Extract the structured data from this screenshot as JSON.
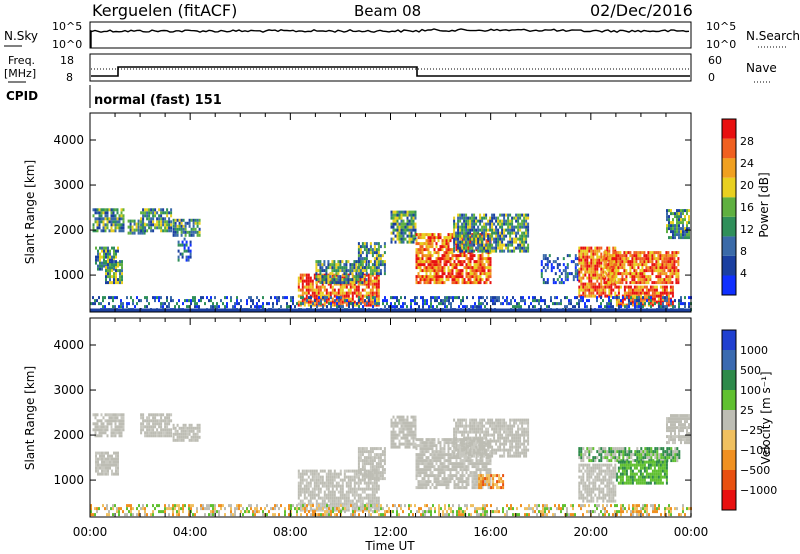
{
  "header": {
    "radar": "Kerguelen (fitACF)",
    "beam": "Beam 08",
    "date": "02/Dec/2016"
  },
  "noise_panel": {
    "left_label": "N.Sky",
    "right_label": "N.Search",
    "left_ticks": [
      "10^5",
      "10^0"
    ],
    "right_ticks": [
      "10^5",
      "10^0"
    ]
  },
  "freq_panel": {
    "left_label_line1": "Freq.",
    "left_label_line2": "[MHz]",
    "right_label": "Nave",
    "left_ticks": [
      "18",
      "8"
    ],
    "right_ticks": [
      "60",
      "0"
    ],
    "cpid_label": "CPID",
    "cpid_text": "normal (fast) 151"
  },
  "colors": {
    "power_scale": [
      "#1030ff",
      "#1a3fa0",
      "#3a6aa8",
      "#2f8f5a",
      "#5fb040",
      "#e8d020",
      "#f0a020",
      "#f06020",
      "#e81010"
    ],
    "velocity_scale": [
      "#2040d0",
      "#3a6ab0",
      "#2e8a4a",
      "#60c030",
      "#bdbdb4",
      "#f0c060",
      "#f09020",
      "#e85010",
      "#e81010"
    ],
    "ground_scatter": "#bdbdb4"
  },
  "chart_data": [
    {
      "type": "heatmap",
      "quantity": "Power",
      "xlabel": "",
      "ylabel": "Slant Range [km]",
      "ylim": [
        180,
        4600
      ],
      "yticks": [
        "1000",
        "2000",
        "3000",
        "4000"
      ],
      "xticks": [
        "00:00",
        "04:00",
        "08:00",
        "12:00",
        "16:00",
        "20:00",
        "00:00"
      ],
      "colorbar_label": "Power [dB]",
      "colorbar_ticks": [
        "4",
        "8",
        "12",
        "16",
        "20",
        "24",
        "28"
      ],
      "regions": [
        {
          "t0": 0.1,
          "t1": 1.3,
          "r0": 1950,
          "r1": 2450,
          "level": "mid"
        },
        {
          "t0": 0.2,
          "t1": 1.1,
          "r0": 1100,
          "r1": 1600,
          "level": "mid"
        },
        {
          "t0": 0.6,
          "t1": 1.3,
          "r0": 800,
          "r1": 1300,
          "level": "mid"
        },
        {
          "t0": 1.5,
          "t1": 2.2,
          "r0": 1900,
          "r1": 2200,
          "level": "mid"
        },
        {
          "t0": 2.0,
          "t1": 3.2,
          "r0": 1950,
          "r1": 2450,
          "level": "mid"
        },
        {
          "t0": 3.3,
          "t1": 4.4,
          "r0": 1850,
          "r1": 2200,
          "level": "mid"
        },
        {
          "t0": 3.5,
          "t1": 4.0,
          "r0": 1300,
          "r1": 1800,
          "level": "low"
        },
        {
          "t0": 8.3,
          "t1": 11.5,
          "r0": 300,
          "r1": 1000,
          "level": "high"
        },
        {
          "t0": 9.0,
          "t1": 11.0,
          "r0": 800,
          "r1": 1300,
          "level": "mid"
        },
        {
          "t0": 10.7,
          "t1": 11.8,
          "r0": 1000,
          "r1": 1700,
          "level": "mid"
        },
        {
          "t0": 12.0,
          "t1": 13.0,
          "r0": 1700,
          "r1": 2400,
          "level": "mid"
        },
        {
          "t0": 13.0,
          "t1": 16.0,
          "r0": 800,
          "r1": 1900,
          "level": "high"
        },
        {
          "t0": 14.5,
          "t1": 17.5,
          "r0": 1500,
          "r1": 2300,
          "level": "mid"
        },
        {
          "t0": 18.0,
          "t1": 19.5,
          "r0": 800,
          "r1": 1400,
          "level": "low"
        },
        {
          "t0": 19.5,
          "t1": 21.0,
          "r0": 500,
          "r1": 1600,
          "level": "high"
        },
        {
          "t0": 20.5,
          "t1": 23.5,
          "r0": 800,
          "r1": 1500,
          "level": "high"
        },
        {
          "t0": 21.0,
          "t1": 23.3,
          "r0": 300,
          "r1": 700,
          "level": "high"
        },
        {
          "t0": 23.0,
          "t1": 23.9,
          "r0": 1800,
          "r1": 2400,
          "level": "mid"
        },
        {
          "t0": 0.0,
          "t1": 24.0,
          "r0": 200,
          "r1": 500,
          "level": "low"
        }
      ]
    },
    {
      "type": "heatmap",
      "quantity": "Velocity",
      "xlabel": "Time UT",
      "ylabel": "Slant Range [km]",
      "ylim": [
        180,
        4600
      ],
      "yticks": [
        "1000",
        "2000",
        "3000",
        "4000"
      ],
      "xticks": [
        "00:00",
        "04:00",
        "08:00",
        "12:00",
        "16:00",
        "20:00",
        "00:00"
      ],
      "colorbar_label": "Velocity [m s⁻¹]",
      "colorbar_ticks": [
        "1000",
        "500",
        "100",
        "25",
        "−25",
        "−100",
        "−500",
        "−1000"
      ],
      "regions": [
        {
          "t0": 0.1,
          "t1": 1.3,
          "r0": 1950,
          "r1": 2450,
          "level": "gs"
        },
        {
          "t0": 0.2,
          "t1": 1.1,
          "r0": 1100,
          "r1": 1600,
          "level": "gs"
        },
        {
          "t0": 2.0,
          "t1": 3.2,
          "r0": 1950,
          "r1": 2450,
          "level": "gs"
        },
        {
          "t0": 3.3,
          "t1": 4.4,
          "r0": 1850,
          "r1": 2200,
          "level": "gs"
        },
        {
          "t0": 8.3,
          "t1": 11.5,
          "r0": 300,
          "r1": 1200,
          "level": "gs"
        },
        {
          "t0": 10.7,
          "t1": 11.8,
          "r0": 1000,
          "r1": 1700,
          "level": "gs"
        },
        {
          "t0": 12.0,
          "t1": 13.0,
          "r0": 1700,
          "r1": 2400,
          "level": "gs"
        },
        {
          "t0": 13.0,
          "t1": 16.0,
          "r0": 800,
          "r1": 1900,
          "level": "gs"
        },
        {
          "t0": 14.5,
          "t1": 17.5,
          "r0": 1500,
          "r1": 2300,
          "level": "gs"
        },
        {
          "t0": 15.5,
          "t1": 16.5,
          "r0": 800,
          "r1": 1100,
          "level": "neg"
        },
        {
          "t0": 19.5,
          "t1": 23.5,
          "r0": 1400,
          "r1": 1700,
          "level": "pos"
        },
        {
          "t0": 21.0,
          "t1": 23.0,
          "r0": 900,
          "r1": 1400,
          "level": "pos2"
        },
        {
          "t0": 19.5,
          "t1": 21.0,
          "r0": 500,
          "r1": 1300,
          "level": "gs"
        },
        {
          "t0": 23.0,
          "t1": 23.9,
          "r0": 1800,
          "r1": 2400,
          "level": "gs"
        },
        {
          "t0": 0.0,
          "t1": 24.0,
          "r0": 200,
          "r1": 450,
          "level": "neg2"
        }
      ]
    }
  ]
}
